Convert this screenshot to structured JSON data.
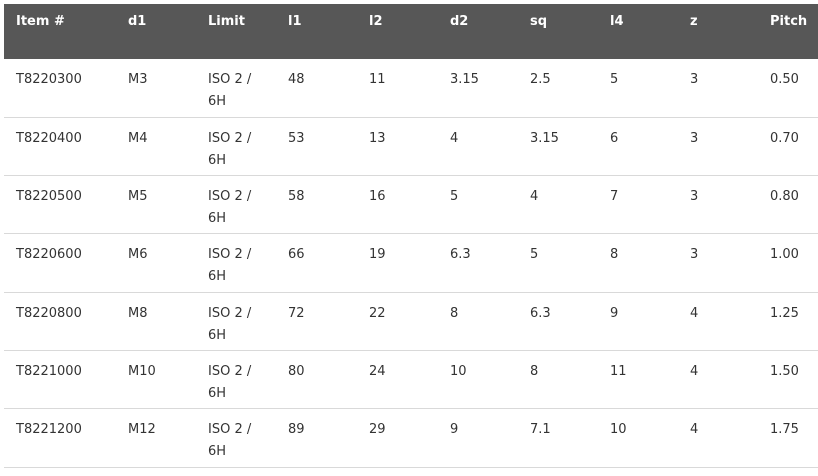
{
  "table": {
    "headers": [
      "Item #",
      "d1",
      "Limit",
      "l1",
      "l2",
      "d2",
      "sq",
      "l4",
      "z",
      "Pitch"
    ],
    "rows": [
      [
        "T8220300",
        "M3",
        "ISO 2 / 6H",
        "48",
        "11",
        "3.15",
        "2.5",
        "5",
        "3",
        "0.50"
      ],
      [
        "T8220400",
        "M4",
        "ISO 2 / 6H",
        "53",
        "13",
        "4",
        "3.15",
        "6",
        "3",
        "0.70"
      ],
      [
        "T8220500",
        "M5",
        "ISO 2 / 6H",
        "58",
        "16",
        "5",
        "4",
        "7",
        "3",
        "0.80"
      ],
      [
        "T8220600",
        "M6",
        "ISO 2 / 6H",
        "66",
        "19",
        "6.3",
        "5",
        "8",
        "3",
        "1.00"
      ],
      [
        "T8220800",
        "M8",
        "ISO 2 / 6H",
        "72",
        "22",
        "8",
        "6.3",
        "9",
        "4",
        "1.25"
      ],
      [
        "T8221000",
        "M10",
        "ISO 2 / 6H",
        "80",
        "24",
        "10",
        "8",
        "11",
        "4",
        "1.50"
      ],
      [
        "T8221200",
        "M12",
        "ISO 2 / 6H",
        "89",
        "29",
        "9",
        "7.1",
        "10",
        "4",
        "1.75"
      ]
    ]
  },
  "colors": {
    "header_background": "#575757",
    "header_text": "#ffffff",
    "row_divider": "#d9d9d9",
    "body_text": "#333333"
  }
}
